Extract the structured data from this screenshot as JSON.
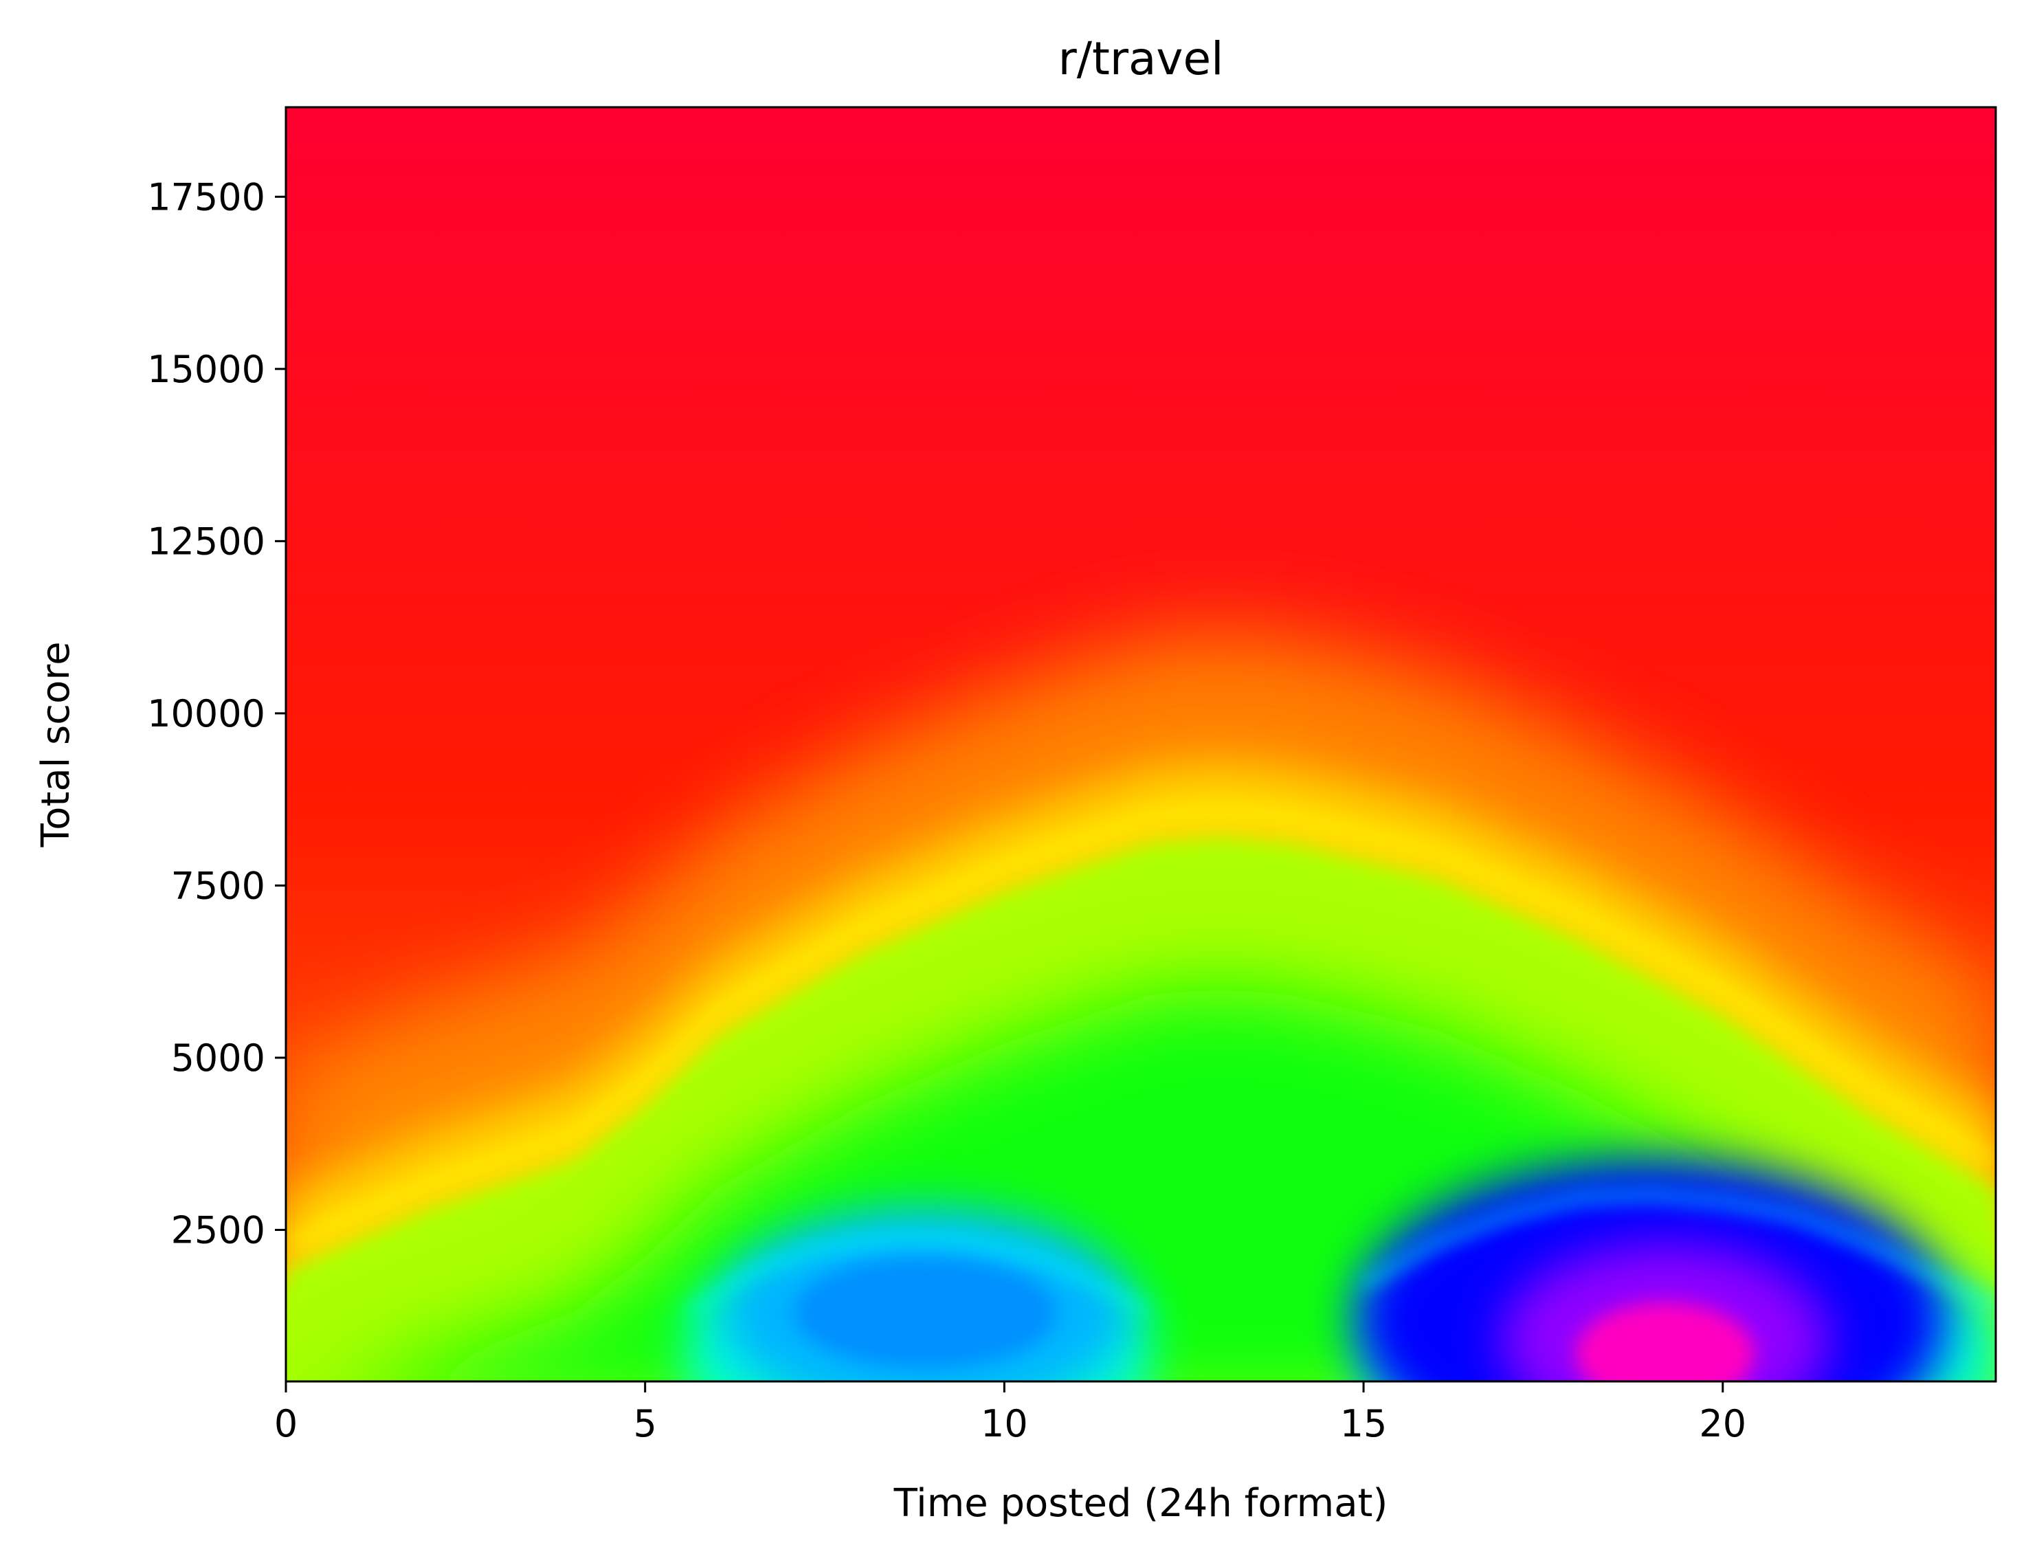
{
  "chart_data": {
    "type": "heatmap",
    "title": "r/travel",
    "xlabel": "Time posted (24h format)",
    "ylabel": "Total score",
    "xlim": [
      0,
      23.8
    ],
    "ylim": [
      300,
      18800
    ],
    "xticks": [
      0,
      5,
      10,
      15,
      20
    ],
    "yticks": [
      2500,
      5000,
      7500,
      10000,
      12500,
      15000,
      17500
    ],
    "colormap": "gist_rainbow",
    "colormap_stops": [
      "#ff0029",
      "#ff0000",
      "#ffff00",
      "#00ff00",
      "#00ffff",
      "#0000ff",
      "#ff00ff"
    ],
    "grid": false,
    "contours": [
      {
        "level": "yellow",
        "color": "#ffff00",
        "x": [
          0,
          2,
          4,
          5,
          6,
          8,
          10,
          12,
          13,
          14,
          16,
          18,
          20,
          22,
          23.8
        ],
        "y": [
          2300,
          3200,
          3900,
          4700,
          5700,
          6900,
          7800,
          8500,
          8600,
          8500,
          8000,
          7100,
          6000,
          4600,
          3500
        ]
      },
      {
        "level": "cyan",
        "color": "#00ffff",
        "x": [
          15,
          16,
          17,
          18,
          19,
          20,
          21,
          22,
          23,
          23.8
        ],
        "y": [
          1700,
          2300,
          2700,
          2950,
          3000,
          2900,
          2700,
          2300,
          1800,
          1400
        ]
      },
      {
        "level": "cyan",
        "color": "#00ffff",
        "x": [
          5.6,
          6.5,
          7.5,
          8.5,
          9.5,
          10.5,
          11.5,
          12
        ],
        "y": [
          1300,
          1900,
          2250,
          2400,
          2350,
          2100,
          1600,
          1300
        ]
      }
    ],
    "hotspots": [
      {
        "label": "blue",
        "color": "#0090ff",
        "x": 8.9,
        "y": 1300
      },
      {
        "label": "magenta",
        "color": "#ff00c0",
        "x": 19.2,
        "y": 700
      }
    ]
  }
}
